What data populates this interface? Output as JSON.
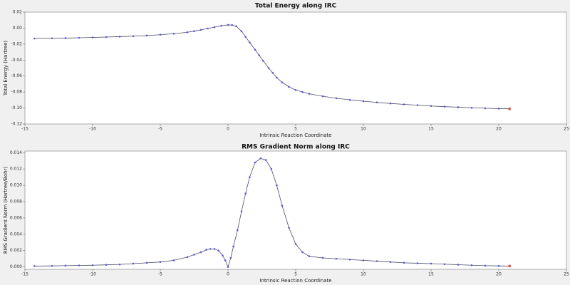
{
  "chart_data": [
    {
      "type": "line",
      "title": "Total Energy along IRC",
      "x_label": "Intrinsic Reaction Coordinate",
      "y_label": "Total Energy (Hartree)",
      "x": [
        -14.3,
        -13,
        -12,
        -11,
        -10,
        -9,
        -8,
        -7,
        -6,
        -5,
        -4,
        -3,
        -2.5,
        -2,
        -1.5,
        -1,
        -0.5,
        0,
        0.3,
        0.6,
        1,
        1.3,
        1.6,
        2,
        2.3,
        2.6,
        3,
        3.3,
        3.6,
        4,
        4.5,
        5,
        5.5,
        6,
        7,
        8,
        9,
        10,
        11,
        12,
        13,
        14,
        15,
        16,
        17,
        18,
        19,
        20,
        20.8
      ],
      "values": [
        -0.013,
        -0.0128,
        -0.0125,
        -0.0121,
        -0.0117,
        -0.0112,
        -0.0107,
        -0.0101,
        -0.0093,
        -0.0083,
        -0.007,
        -0.0052,
        -0.0038,
        -0.0022,
        -0.0005,
        0.0012,
        0.0028,
        0.004,
        0.0038,
        0.0025,
        -0.004,
        -0.011,
        -0.018,
        -0.027,
        -0.034,
        -0.041,
        -0.05,
        -0.056,
        -0.062,
        -0.068,
        -0.0735,
        -0.0775,
        -0.08,
        -0.0822,
        -0.0853,
        -0.0878,
        -0.0898,
        -0.0915,
        -0.093,
        -0.0943,
        -0.0955,
        -0.0965,
        -0.0975,
        -0.0983,
        -0.099,
        -0.0997,
        -0.1003,
        -0.1008,
        -0.101
      ],
      "color": "#4a4a6a",
      "marker_color": "#5a5ad8",
      "end_marker_color": "#e06060",
      "xlim": [
        -15,
        25
      ],
      "xticks": [
        -15,
        -10,
        -5,
        0,
        5,
        10,
        15,
        20,
        25
      ],
      "ylim": [
        -0.12,
        0.02
      ],
      "yticks": [
        0.02,
        {
          "value": 0,
          "label": "0.00"
        },
        -0.02,
        -0.04,
        -0.06,
        -0.08,
        {
          "value": -0.1,
          "label": "-0.10"
        },
        -0.12
      ]
    },
    {
      "type": "line",
      "title": "RMS Gradient Norm along IRC",
      "x_label": "Intrinsic Reaction Coordinate",
      "y_label": "RMS Gradient Norm (Hartree/Bohr)",
      "x": [
        -14.3,
        -13,
        -12,
        -11,
        -10,
        -9,
        -8,
        -7,
        -6,
        -5,
        -4,
        -3,
        -2.5,
        -2,
        -1.6,
        -1.3,
        -1,
        -0.7,
        -0.4,
        -0.2,
        0,
        0.2,
        0.4,
        0.7,
        1,
        1.3,
        1.6,
        2,
        2.4,
        2.8,
        3.2,
        3.6,
        4,
        4.5,
        5,
        5.5,
        6,
        7,
        8,
        9,
        10,
        11,
        12,
        13,
        14,
        15,
        16,
        17,
        18,
        19,
        20,
        20.8
      ],
      "values": [
        0.0001,
        0.00012,
        0.00015,
        0.00018,
        0.0002,
        0.00025,
        0.0003,
        0.0004,
        0.0005,
        0.0006,
        0.0008,
        0.0012,
        0.0015,
        0.0018,
        0.0021,
        0.0022,
        0.0022,
        0.002,
        0.0014,
        0.0008,
        0.0,
        0.0011,
        0.0025,
        0.0045,
        0.0068,
        0.009,
        0.011,
        0.0128,
        0.0133,
        0.0131,
        0.012,
        0.01,
        0.0075,
        0.0048,
        0.0028,
        0.0018,
        0.0013,
        0.0011,
        0.001,
        0.0009,
        0.0008,
        0.0007,
        0.0006,
        0.0005,
        0.00045,
        0.0004,
        0.00033,
        0.00027,
        0.0002,
        0.00015,
        0.00012,
        0.0001
      ],
      "color": "#4a4a6a",
      "marker_color": "#5a5ad8",
      "end_marker_color": "#e06060",
      "xlim": [
        -15,
        25
      ],
      "xticks": [
        -15,
        -10,
        -5,
        0,
        5,
        10,
        15,
        20,
        25
      ],
      "ylim": [
        -0.0003,
        0.0142
      ],
      "yticks": [
        0.014,
        0.012,
        {
          "value": 0.01,
          "label": "0.010"
        },
        0.008,
        0.006,
        0.004,
        0.002,
        {
          "value": 0,
          "label": "0.000"
        }
      ]
    }
  ]
}
